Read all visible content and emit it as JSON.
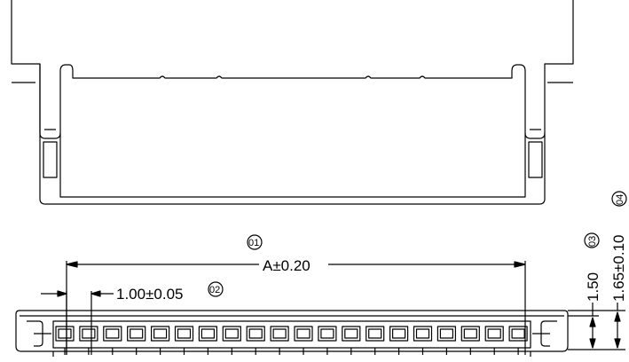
{
  "drawing": {
    "dim_width": "A±0.20",
    "dim_pitch": "1.00±0.05",
    "dim_height_small": "1.50",
    "dim_height_total": "1.65±0.10",
    "callouts": [
      "01",
      "02",
      "03",
      "04"
    ]
  },
  "colors": {
    "line": "#000000",
    "background": "#ffffff"
  }
}
